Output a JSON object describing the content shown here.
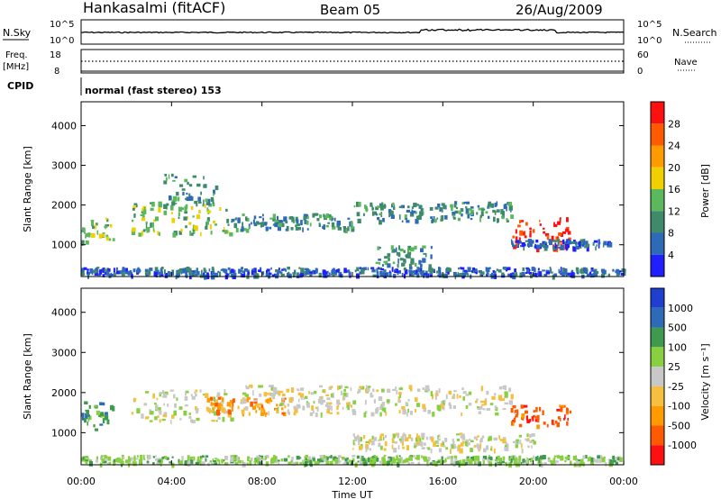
{
  "header": {
    "station": "Hankasalmi (fitACF)",
    "beam": "Beam 05",
    "date": "26/Aug/2009"
  },
  "noise_panel": {
    "left_label": "N.Sky",
    "right_label": "N.Search",
    "left_ticks": [
      "10^5",
      "10^0"
    ],
    "right_ticks": [
      "10^5",
      "10^0"
    ]
  },
  "freq_panel": {
    "left_label_1": "Freq.",
    "left_label_2": "[MHz]",
    "right_label": "Nave",
    "left_ticks": [
      "18",
      "8"
    ],
    "right_ticks": [
      "60",
      "0"
    ]
  },
  "cpid_panel": {
    "label": "CPID",
    "mode": "normal (fast stereo) 153"
  },
  "colors": {
    "power": [
      "#1f1fff",
      "#2d6ab8",
      "#3f8a6a",
      "#5cb85c",
      "#f0d000",
      "#ff9a00",
      "#ff5a00",
      "#ff1010"
    ],
    "velocity": [
      "#ff1010",
      "#ff5a00",
      "#ff9a00",
      "#f5c040",
      "#c8c8c8",
      "#88d040",
      "#3f9a50",
      "#2d6ab8",
      "#1f3fd0"
    ]
  },
  "chart_data": [
    {
      "type": "heatmap",
      "name_hint": "power",
      "ylabel": "Slant Range [km]",
      "yticks": [
        1000,
        2000,
        3000,
        4000
      ],
      "ylim": [
        200,
        4600
      ],
      "xlim": [
        0,
        24
      ],
      "colorbar": {
        "label": "Power [dB]",
        "ticks": [
          "28",
          "24",
          "20",
          "16",
          "12",
          "8",
          "4"
        ],
        "levels": [
          4,
          8,
          12,
          16,
          20,
          24,
          28,
          32
        ]
      },
      "bands": [
        {
          "t0": 0.0,
          "t1": 1.4,
          "r0": 1100,
          "r1": 1700,
          "level": 3
        },
        {
          "t0": 2.2,
          "t1": 6.6,
          "r0": 1300,
          "r1": 2100,
          "level": 3
        },
        {
          "t0": 3.6,
          "t1": 6.0,
          "r0": 2000,
          "r1": 2800,
          "level": 2
        },
        {
          "t0": 6.6,
          "t1": 12.0,
          "r0": 1400,
          "r1": 1800,
          "level": 2
        },
        {
          "t0": 12.0,
          "t1": 19.0,
          "r0": 1600,
          "r1": 2100,
          "level": 2
        },
        {
          "t0": 13.0,
          "t1": 15.5,
          "r0": 500,
          "r1": 1000,
          "level": 2
        },
        {
          "t0": 19.0,
          "t1": 21.6,
          "r0": 900,
          "r1": 1700,
          "level": 7
        },
        {
          "t0": 19.0,
          "t1": 23.4,
          "r0": 950,
          "r1": 1150,
          "level": 1
        },
        {
          "t0": 0.0,
          "t1": 24.0,
          "r0": 250,
          "r1": 450,
          "level": 1
        }
      ]
    },
    {
      "type": "heatmap",
      "name_hint": "velocity",
      "ylabel": "Slant Range [km]",
      "xlabel": "Time UT",
      "yticks": [
        1000,
        2000,
        3000,
        4000
      ],
      "xticks": [
        "00:00",
        "04:00",
        "08:00",
        "12:00",
        "16:00",
        "20:00",
        "00:00"
      ],
      "ylim": [
        200,
        4600
      ],
      "xlim": [
        0,
        24
      ],
      "colorbar": {
        "label": "Velocity [m s⁻¹]",
        "ticks": [
          "1000",
          "500",
          "100",
          "25",
          "-25",
          "-100",
          "-500",
          "-1000"
        ]
      },
      "bands": [
        {
          "t0": 0.0,
          "t1": 1.4,
          "r0": 1100,
          "r1": 1800,
          "level": 6
        },
        {
          "t0": 2.2,
          "t1": 6.6,
          "r0": 1300,
          "r1": 2100,
          "level": 4
        },
        {
          "t0": 5.5,
          "t1": 9.0,
          "r0": 1500,
          "r1": 1900,
          "level": 2
        },
        {
          "t0": 7.0,
          "t1": 19.0,
          "r0": 1500,
          "r1": 2200,
          "level": 4
        },
        {
          "t0": 19.0,
          "t1": 21.6,
          "r0": 1200,
          "r1": 1700,
          "level": 1
        },
        {
          "t0": 12.0,
          "t1": 20.0,
          "r0": 600,
          "r1": 1000,
          "level": 4
        },
        {
          "t0": 0.0,
          "t1": 24.0,
          "r0": 250,
          "r1": 450,
          "level": 5
        }
      ]
    }
  ]
}
